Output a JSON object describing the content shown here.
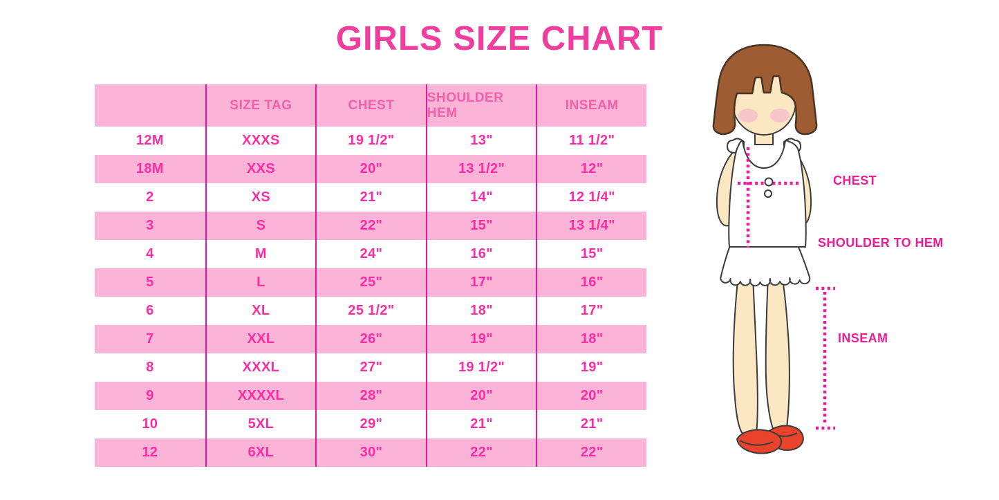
{
  "title": "GIRLS SIZE CHART",
  "table": {
    "columns": [
      "",
      "SIZE TAG",
      "CHEST",
      "SHOULDER HEM",
      "INSEAM"
    ],
    "rows": [
      [
        "12M",
        "XXXS",
        "19 1/2\"",
        "13\"",
        "11 1/2\""
      ],
      [
        "18M",
        "XXS",
        "20\"",
        "13 1/2\"",
        "12\""
      ],
      [
        "2",
        "XS",
        "21\"",
        "14\"",
        "12 1/4\""
      ],
      [
        "3",
        "S",
        "22\"",
        "15\"",
        "13 1/4\""
      ],
      [
        "4",
        "M",
        "24\"",
        "16\"",
        "15\""
      ],
      [
        "5",
        "L",
        "25\"",
        "17\"",
        "16\""
      ],
      [
        "6",
        "XL",
        "25 1/2\"",
        "18\"",
        "17\""
      ],
      [
        "7",
        "XXL",
        "26\"",
        "19\"",
        "18\""
      ],
      [
        "8",
        "XXXL",
        "27\"",
        "19 1/2\"",
        "19\""
      ],
      [
        "9",
        "XXXXL",
        "28\"",
        "20\"",
        "20\""
      ],
      [
        "10",
        "5XL",
        "29\"",
        "21\"",
        "21\""
      ],
      [
        "12",
        "6XL",
        "30\"",
        "22\"",
        "22\""
      ]
    ]
  },
  "figure": {
    "illustration": "girl-with-measurement-lines",
    "labels": {
      "chest": "CHEST",
      "shoulder_to_hem": "SHOULDER TO HEM",
      "inseam": "INSEAM"
    }
  },
  "colors": {
    "title_pink": "#EF3E9E",
    "row_pink": "#FBB3D8",
    "grid_line": "#E8169B",
    "cell_text": "#FA2EA2",
    "header_text": "#F160A8",
    "label_pink": "#EE1D94",
    "dotted_line": "#EC1A96",
    "hair_brown": "#9E5C33",
    "skin": "#FCE7C3",
    "shoe_red": "#E9432C"
  }
}
